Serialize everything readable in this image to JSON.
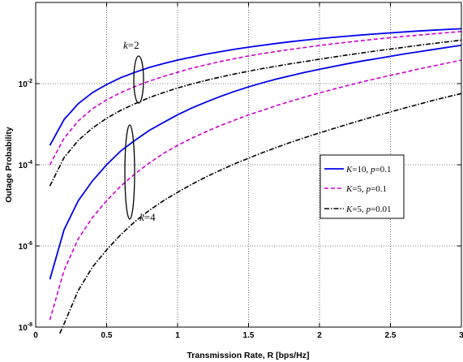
{
  "chart_data": {
    "type": "line",
    "xlabel": "Transmission Rate, R [bps/Hz]",
    "ylabel": "Outage Probability",
    "xlim": [
      0,
      3
    ],
    "ylim": [
      1e-08,
      1
    ],
    "yscale": "log",
    "grid": true,
    "legend_position": "right",
    "x_ticks": [
      "0",
      "0.5",
      "1",
      "1.5",
      "2",
      "2.5",
      "3"
    ],
    "y_ticks": [
      {
        "base": "10",
        "exp": "-8",
        "value": 1e-08
      },
      {
        "base": "10",
        "exp": "-6",
        "value": 1e-06
      },
      {
        "base": "10",
        "exp": "-4",
        "value": 0.0001
      },
      {
        "base": "10",
        "exp": "-2",
        "value": 0.01
      }
    ],
    "x": [
      0.1,
      0.2,
      0.3,
      0.4,
      0.5,
      0.6,
      0.7,
      0.8,
      0.9,
      1.0,
      1.1,
      1.2,
      1.3,
      1.4,
      1.5,
      1.6,
      1.7,
      1.8,
      1.9,
      2.0,
      2.1,
      2.2,
      2.3,
      2.4,
      2.5,
      2.6,
      2.7,
      2.8,
      2.9,
      3.0
    ],
    "series": [
      {
        "name": "K=10, p=0.1 (k=2)",
        "legend_id": 0,
        "color": "#0000ee",
        "dash": "solid",
        "values": [
          0.0003,
          0.0013,
          0.0032,
          0.006,
          0.0095,
          0.014,
          0.019,
          0.025,
          0.031,
          0.038,
          0.045,
          0.053,
          0.061,
          0.07,
          0.079,
          0.088,
          0.098,
          0.108,
          0.118,
          0.128,
          0.138,
          0.148,
          0.158,
          0.168,
          0.178,
          0.188,
          0.198,
          0.207,
          0.216,
          0.225
        ]
      },
      {
        "name": "K=5, p=0.1 (k=2)",
        "legend_id": 1,
        "color": "#cc00cc",
        "dash": "dashed",
        "values": [
          0.0001,
          0.00045,
          0.0012,
          0.0024,
          0.004,
          0.006,
          0.0085,
          0.0115,
          0.015,
          0.019,
          0.024,
          0.029,
          0.035,
          0.041,
          0.048,
          0.055,
          0.062,
          0.07,
          0.078,
          0.087,
          0.096,
          0.105,
          0.115,
          0.125,
          0.135,
          0.146,
          0.157,
          0.168,
          0.18,
          0.192
        ]
      },
      {
        "name": "K=5, p=0.01 (k=2)",
        "legend_id": 2,
        "color": "#000000",
        "dash": "dashdot",
        "values": [
          3e-05,
          0.00015,
          0.0004,
          0.0008,
          0.0014,
          0.0022,
          0.0032,
          0.0045,
          0.006,
          0.0078,
          0.0098,
          0.012,
          0.0145,
          0.0172,
          0.0202,
          0.0235,
          0.027,
          0.031,
          0.035,
          0.04,
          0.045,
          0.051,
          0.057,
          0.064,
          0.071,
          0.079,
          0.088,
          0.097,
          0.107,
          0.118
        ]
      },
      {
        "name": "K=10, p=0.1 (k=4)",
        "legend_id": 0,
        "color": "#0000ee",
        "dash": "solid",
        "values": [
          1.5e-07,
          2.5e-06,
          1.3e-05,
          4e-05,
          0.0001,
          0.00022,
          0.0004,
          0.0007,
          0.0011,
          0.0017,
          0.0025,
          0.0035,
          0.0048,
          0.0064,
          0.0083,
          0.0105,
          0.013,
          0.0158,
          0.019,
          0.0225,
          0.0265,
          0.031,
          0.036,
          0.041,
          0.047,
          0.054,
          0.061,
          0.069,
          0.078,
          0.088
        ]
      },
      {
        "name": "K=5, p=0.1 (k=4)",
        "legend_id": 1,
        "color": "#cc00cc",
        "dash": "dashed",
        "values": [
          1.5e-08,
          2.5e-07,
          1.5e-06,
          5e-06,
          1.3e-05,
          3e-05,
          6e-05,
          0.00011,
          0.00019,
          0.0003,
          0.00045,
          0.00065,
          0.00092,
          0.00125,
          0.0017,
          0.0022,
          0.0029,
          0.0037,
          0.0047,
          0.0059,
          0.0073,
          0.009,
          0.011,
          0.0133,
          0.016,
          0.019,
          0.023,
          0.027,
          0.032,
          0.038
        ]
      },
      {
        "name": "K=5, p=0.01 (k=4)",
        "legend_id": 2,
        "color": "#000000",
        "dash": "dashdot",
        "x": [
          0.17,
          0.2,
          0.3,
          0.4,
          0.5,
          0.6,
          0.7,
          0.8,
          0.9,
          1.0,
          1.1,
          1.2,
          1.3,
          1.4,
          1.5,
          1.6,
          1.7,
          1.8,
          1.9,
          2.0,
          2.1,
          2.2,
          2.3,
          2.4,
          2.5,
          2.6,
          2.7,
          2.8,
          2.9,
          3.0
        ],
        "values": [
          7e-09,
          1.2e-08,
          8e-08,
          3e-07,
          8e-07,
          1.9e-06,
          4e-06,
          7.5e-06,
          1.3e-05,
          2.1e-05,
          3.3e-05,
          5e-05,
          7.3e-05,
          0.000105,
          0.000145,
          0.0002,
          0.00027,
          0.00036,
          0.00047,
          0.00061,
          0.00078,
          0.001,
          0.00127,
          0.0016,
          0.002,
          0.0025,
          0.0031,
          0.00385,
          0.0047,
          0.0057
        ]
      }
    ],
    "legend": [
      {
        "var1": "K",
        "text1": "=10, ",
        "var2": "p",
        "text2": "=0.1",
        "color": "#0000ee",
        "dash": "solid"
      },
      {
        "var1": "K",
        "text1": "=5, ",
        "var2": "p",
        "text2": "=0.1",
        "color": "#cc00cc",
        "dash": "dashed"
      },
      {
        "var1": "K",
        "text1": "=5, ",
        "var2": "p",
        "text2": "=0.01",
        "color": "#000000",
        "dash": "dashdot"
      }
    ],
    "annotations": [
      {
        "var": "k",
        "text": "=2",
        "x": 0.73,
        "y": 0.02
      },
      {
        "var": "k",
        "text": "=4",
        "x": 0.73,
        "y": 3e-06
      }
    ]
  }
}
